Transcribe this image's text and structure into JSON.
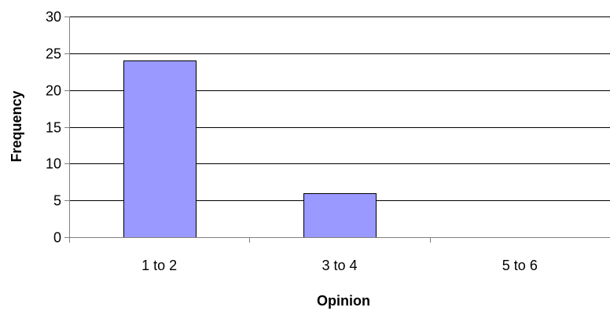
{
  "chart_data": {
    "type": "bar",
    "title": "",
    "xlabel": "Opinion",
    "ylabel": "Frequency",
    "categories": [
      "1 to 2",
      "3 to 4",
      "5 to 6"
    ],
    "values": [
      24,
      6,
      0
    ],
    "ylim": [
      0,
      30
    ],
    "yticks": [
      0,
      5,
      10,
      15,
      20,
      25,
      30
    ],
    "grid": true,
    "legend": "none",
    "colors": {
      "bar_fill": "#9999ff",
      "bar_stroke": "#000000",
      "grid": "#000000",
      "axis": "#808080"
    }
  }
}
